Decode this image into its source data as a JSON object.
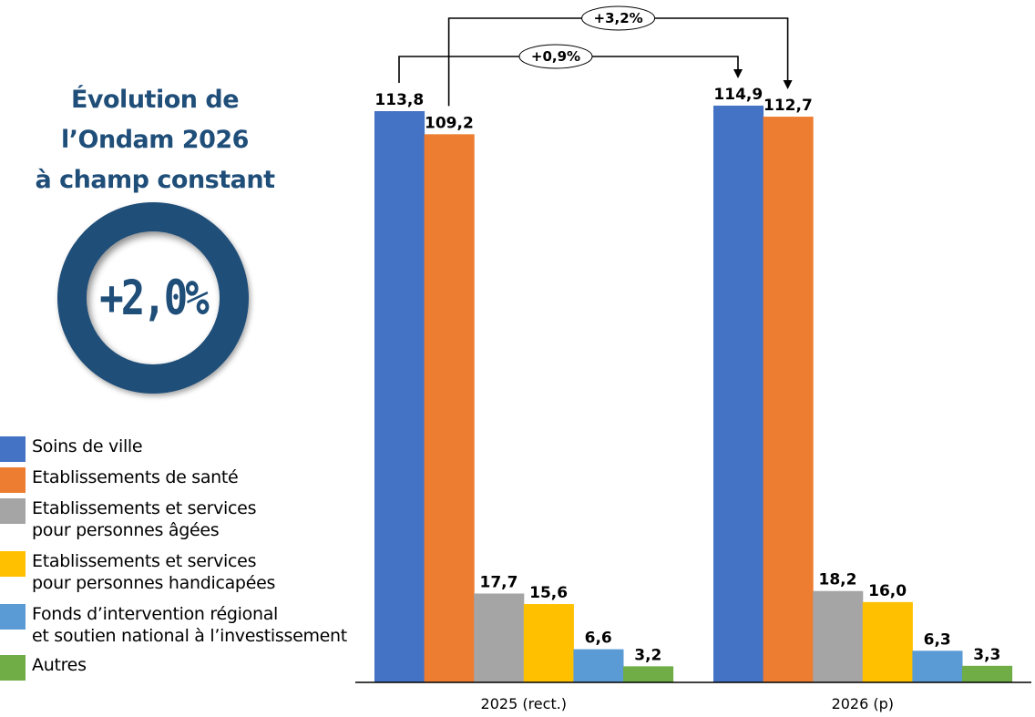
{
  "panel": {
    "title_lines": [
      "Évolution de",
      "l’Ondam 2026",
      "à champ constant"
    ],
    "overall_growth": "+2,0%",
    "ring_color": "#1f4e79"
  },
  "chart_data": {
    "type": "bar",
    "title": "Évolution de l’Ondam 2026 à champ constant",
    "xlabel": "",
    "ylabel": "",
    "ylim": [
      0,
      120
    ],
    "grid": false,
    "legend_position": "left",
    "categories": [
      "2025 (rect.)",
      "2026 (p)"
    ],
    "series": [
      {
        "name": "Soins de ville",
        "name_lines": [
          "Soins de ville"
        ],
        "color": "#4472c4",
        "values": [
          113.8,
          114.9
        ],
        "labels": [
          "113,8",
          "114,9"
        ]
      },
      {
        "name": "Etablissements de santé",
        "name_lines": [
          "Etablissements de santé"
        ],
        "color": "#ed7d31",
        "values": [
          109.2,
          112.7
        ],
        "labels": [
          "109,2",
          "112,7"
        ]
      },
      {
        "name": "Etablissements et services pour personnes âgées",
        "name_lines": [
          "Etablissements et services",
          "pour personnes âgées"
        ],
        "color": "#a5a5a5",
        "values": [
          17.7,
          18.2
        ],
        "labels": [
          "17,7",
          "18,2"
        ]
      },
      {
        "name": "Etablissements et services pour personnes handicapées",
        "name_lines": [
          "Etablissements et services",
          "pour personnes handicapées"
        ],
        "color": "#ffc000",
        "values": [
          15.6,
          16.0
        ],
        "labels": [
          "15,6",
          "16,0"
        ]
      },
      {
        "name": "Fonds d’intervention régional et soutien national à l’investissement",
        "name_lines": [
          "Fonds d’intervention régional",
          "et soutien national à l’investissement"
        ],
        "color": "#5b9bd5",
        "values": [
          6.6,
          6.3
        ],
        "labels": [
          "6,6",
          "6,3"
        ]
      },
      {
        "name": "Autres",
        "name_lines": [
          "Autres"
        ],
        "color": "#70ad47",
        "values": [
          3.2,
          3.3
        ],
        "labels": [
          "3,2",
          "3,3"
        ]
      }
    ],
    "annotations": [
      {
        "text": "+0,9%",
        "series": "Soins de ville",
        "from": "2025 (rect.)",
        "to": "2026 (p)"
      },
      {
        "text": "+3,2%",
        "series": "Etablissements de santé",
        "from": "2025 (rect.)",
        "to": "2026 (p)"
      }
    ]
  }
}
